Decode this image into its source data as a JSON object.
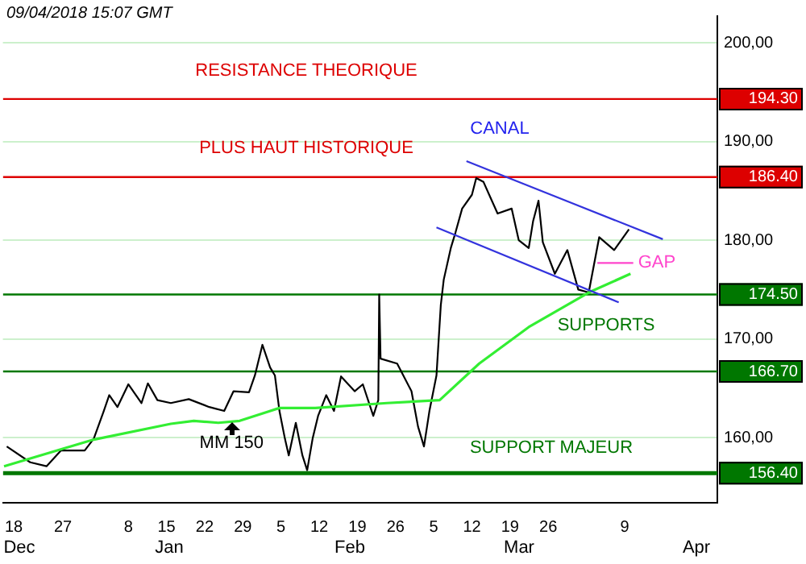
{
  "chart_data": {
    "type": "line",
    "annotations": [
      "09/04/2018 15:07 GMT",
      "CANAL",
      "Dec",
      "Jan",
      "Feb",
      "Mar",
      "Apr",
      "RESISTANCE THEORIQUE",
      "PLUS HAUT HISTORIQUE",
      "SUPPORTS",
      "SUPPORT MAJEUR"
    ],
    "series": [
      {
        "color": "#000000",
        "x": [
          "2017-12-16T17:00",
          "2017-12-21",
          "2017-12-24",
          "2017-12-26T16:00",
          "2017-12-31",
          "2018-01-01T16:00",
          "2018-01-03T12:00",
          "2018-01-04T12:00",
          "2018-01-06",
          "2018-01-08",
          "2018-01-10T10:00",
          "2018-01-11T14:00",
          "2018-01-13T08:00",
          "2018-01-15T19:00",
          "2018-01-19T02:00",
          "2018-01-22T20:00",
          "2018-01-25T14:00",
          "2018-01-27T07:00",
          "2018-01-30T03:00",
          "2018-01-31T05:00",
          "2018-02-01T14:00",
          "2018-02-03",
          "2018-02-03T21:00",
          "2018-02-04T17:00",
          "2018-02-05T17:00",
          "2018-02-06T10:00",
          "2018-02-07T17:00",
          "2018-02-08T22:00",
          "2018-02-09T19:00",
          "2018-02-10T19:00",
          "2018-02-11T19:00",
          "2018-02-13T07:00",
          "2018-02-14T17:00",
          "2018-02-16",
          "2018-02-18T12:00",
          "2018-02-20",
          "2018-02-21T22:00",
          "2018-02-22T20:00",
          "2018-02-23",
          "2018-02-23T06:00",
          "2018-02-26T07:00",
          "2018-02-28T22:00",
          "2018-03-02T03:00",
          "2018-03-03T05:00",
          "2018-03-04T05:00",
          "2018-03-05T12:00",
          "2018-03-06T07:00",
          "2018-03-06T20:00",
          "2018-03-08T03:00",
          "2018-03-09",
          "2018-03-10T05:00",
          "2018-03-12",
          "2018-03-12T19:00",
          "2018-03-14T03:00",
          "2018-03-15T10:00",
          "2018-03-16T17:00",
          "2018-03-19T07:00",
          "2018-03-20T14:00",
          "2018-03-22T10:00",
          "2018-03-23T05:00",
          "2018-03-24T05:00",
          "2018-03-25",
          "2018-03-27T05:00",
          "2018-03-29T12:00",
          "2018-03-31T12:00",
          "2018-04-02T10:00",
          "2018-04-04T08:00",
          "2018-04-07T02:00",
          "2018-04-09T19:00"
        ],
        "values": [
          159.1,
          157.5,
          157.1,
          158.7,
          158.7,
          159.9,
          162.7,
          164.3,
          163.1,
          165.4,
          163.5,
          165.5,
          163.8,
          163.5,
          163.9,
          163.1,
          162.7,
          164.7,
          164.6,
          166.3,
          169.4,
          167.1,
          166.3,
          162.7,
          159.9,
          158.2,
          161.5,
          158.2,
          156.7,
          159.9,
          162.2,
          164.3,
          162.7,
          166.2,
          164.7,
          165.4,
          162.2,
          163.8,
          174.5,
          168,
          167.5,
          164.7,
          161.1,
          159.1,
          162.7,
          166.3,
          173.4,
          176,
          179.2,
          180.8,
          183.2,
          184.6,
          186.3,
          185.9,
          184.3,
          182.7,
          183.2,
          180,
          179.2,
          181.9,
          184,
          179.8,
          176.6,
          179,
          175,
          174.7,
          180.3,
          179,
          181.1
        ]
      },
      {
        "name": "MM 150",
        "color": "#33ee33",
        "x": [
          "2017-12-16T05:00",
          "2018-01-01T16:00",
          "2018-01-15T19:00",
          "2018-01-20",
          "2018-01-24T12:00",
          "2018-01-28T10:00",
          "2018-02-04T17:00",
          "2018-02-11T07:00",
          "2018-02-24T10:00",
          "2018-03-06T02:00",
          "2018-03-13T08:00",
          "2018-03-22T10:00",
          "2018-04-02T10:00",
          "2018-04-10T02:00"
        ],
        "values": [
          157.1,
          159.8,
          161.4,
          161.7,
          161.5,
          161.7,
          163,
          163,
          163.5,
          163.8,
          167.5,
          171.2,
          174.7,
          176.6
        ]
      },
      {
        "color": "#3333dd",
        "x": [
          "2018-03-11",
          "2018-04-16"
        ],
        "values": [
          188,
          180.1
        ]
      },
      {
        "color": "#3333dd",
        "x": [
          "2018-03-05T12:00",
          "2018-04-07T22:00"
        ],
        "values": [
          181.3,
          173.7
        ]
      },
      {
        "name": "GAP",
        "color": "#ff44cc",
        "x": [
          "2018-04-04",
          "2018-04-10T14:00"
        ],
        "values": [
          177.7,
          177.7
        ]
      }
    ],
    "xlim": [
      "2017-12-16",
      "2018-04-26"
    ],
    "xticks": [
      {
        "value": "2017-12-18",
        "label": "18"
      },
      {
        "value": "2017-12-27",
        "label": "27"
      },
      {
        "value": "2018-01-08",
        "label": "8"
      },
      {
        "value": "2018-01-15",
        "label": "15"
      },
      {
        "value": "2018-01-22",
        "label": "22"
      },
      {
        "value": "2018-01-29",
        "label": "29"
      },
      {
        "value": "2018-02-05",
        "label": "5"
      },
      {
        "value": "2018-02-12",
        "label": "12"
      },
      {
        "value": "2018-02-19",
        "label": "19"
      },
      {
        "value": "2018-02-26",
        "label": "26"
      },
      {
        "value": "2018-03-05",
        "label": "5"
      },
      {
        "value": "2018-03-12",
        "label": "12"
      },
      {
        "value": "2018-03-19",
        "label": "19"
      },
      {
        "value": "2018-03-26",
        "label": "26"
      },
      {
        "value": "2018-04-09",
        "label": "9"
      }
    ],
    "ylim": [
      153.4,
      202.7
    ],
    "yticks": [
      {
        "value": 200,
        "label": "200,00"
      },
      {
        "value": 190,
        "label": "190,00"
      },
      {
        "value": 180,
        "label": "180,00"
      },
      {
        "value": 170,
        "label": "170,00"
      },
      {
        "value": 160,
        "label": "160,00"
      }
    ],
    "ref_lines": [
      {
        "axis": "y",
        "value": 194.3,
        "label": "194.30",
        "color": "#dd0000"
      },
      {
        "axis": "y",
        "value": 186.4,
        "label": "186.40",
        "color": "#dd0000"
      },
      {
        "axis": "y",
        "value": 174.5,
        "label": "174.50",
        "color": "#007700"
      },
      {
        "axis": "y",
        "value": 166.7,
        "label": "166.70",
        "color": "#007700"
      },
      {
        "axis": "y",
        "value": 156.4,
        "label": "156.40",
        "color": "#007700"
      }
    ],
    "grid": "y"
  }
}
